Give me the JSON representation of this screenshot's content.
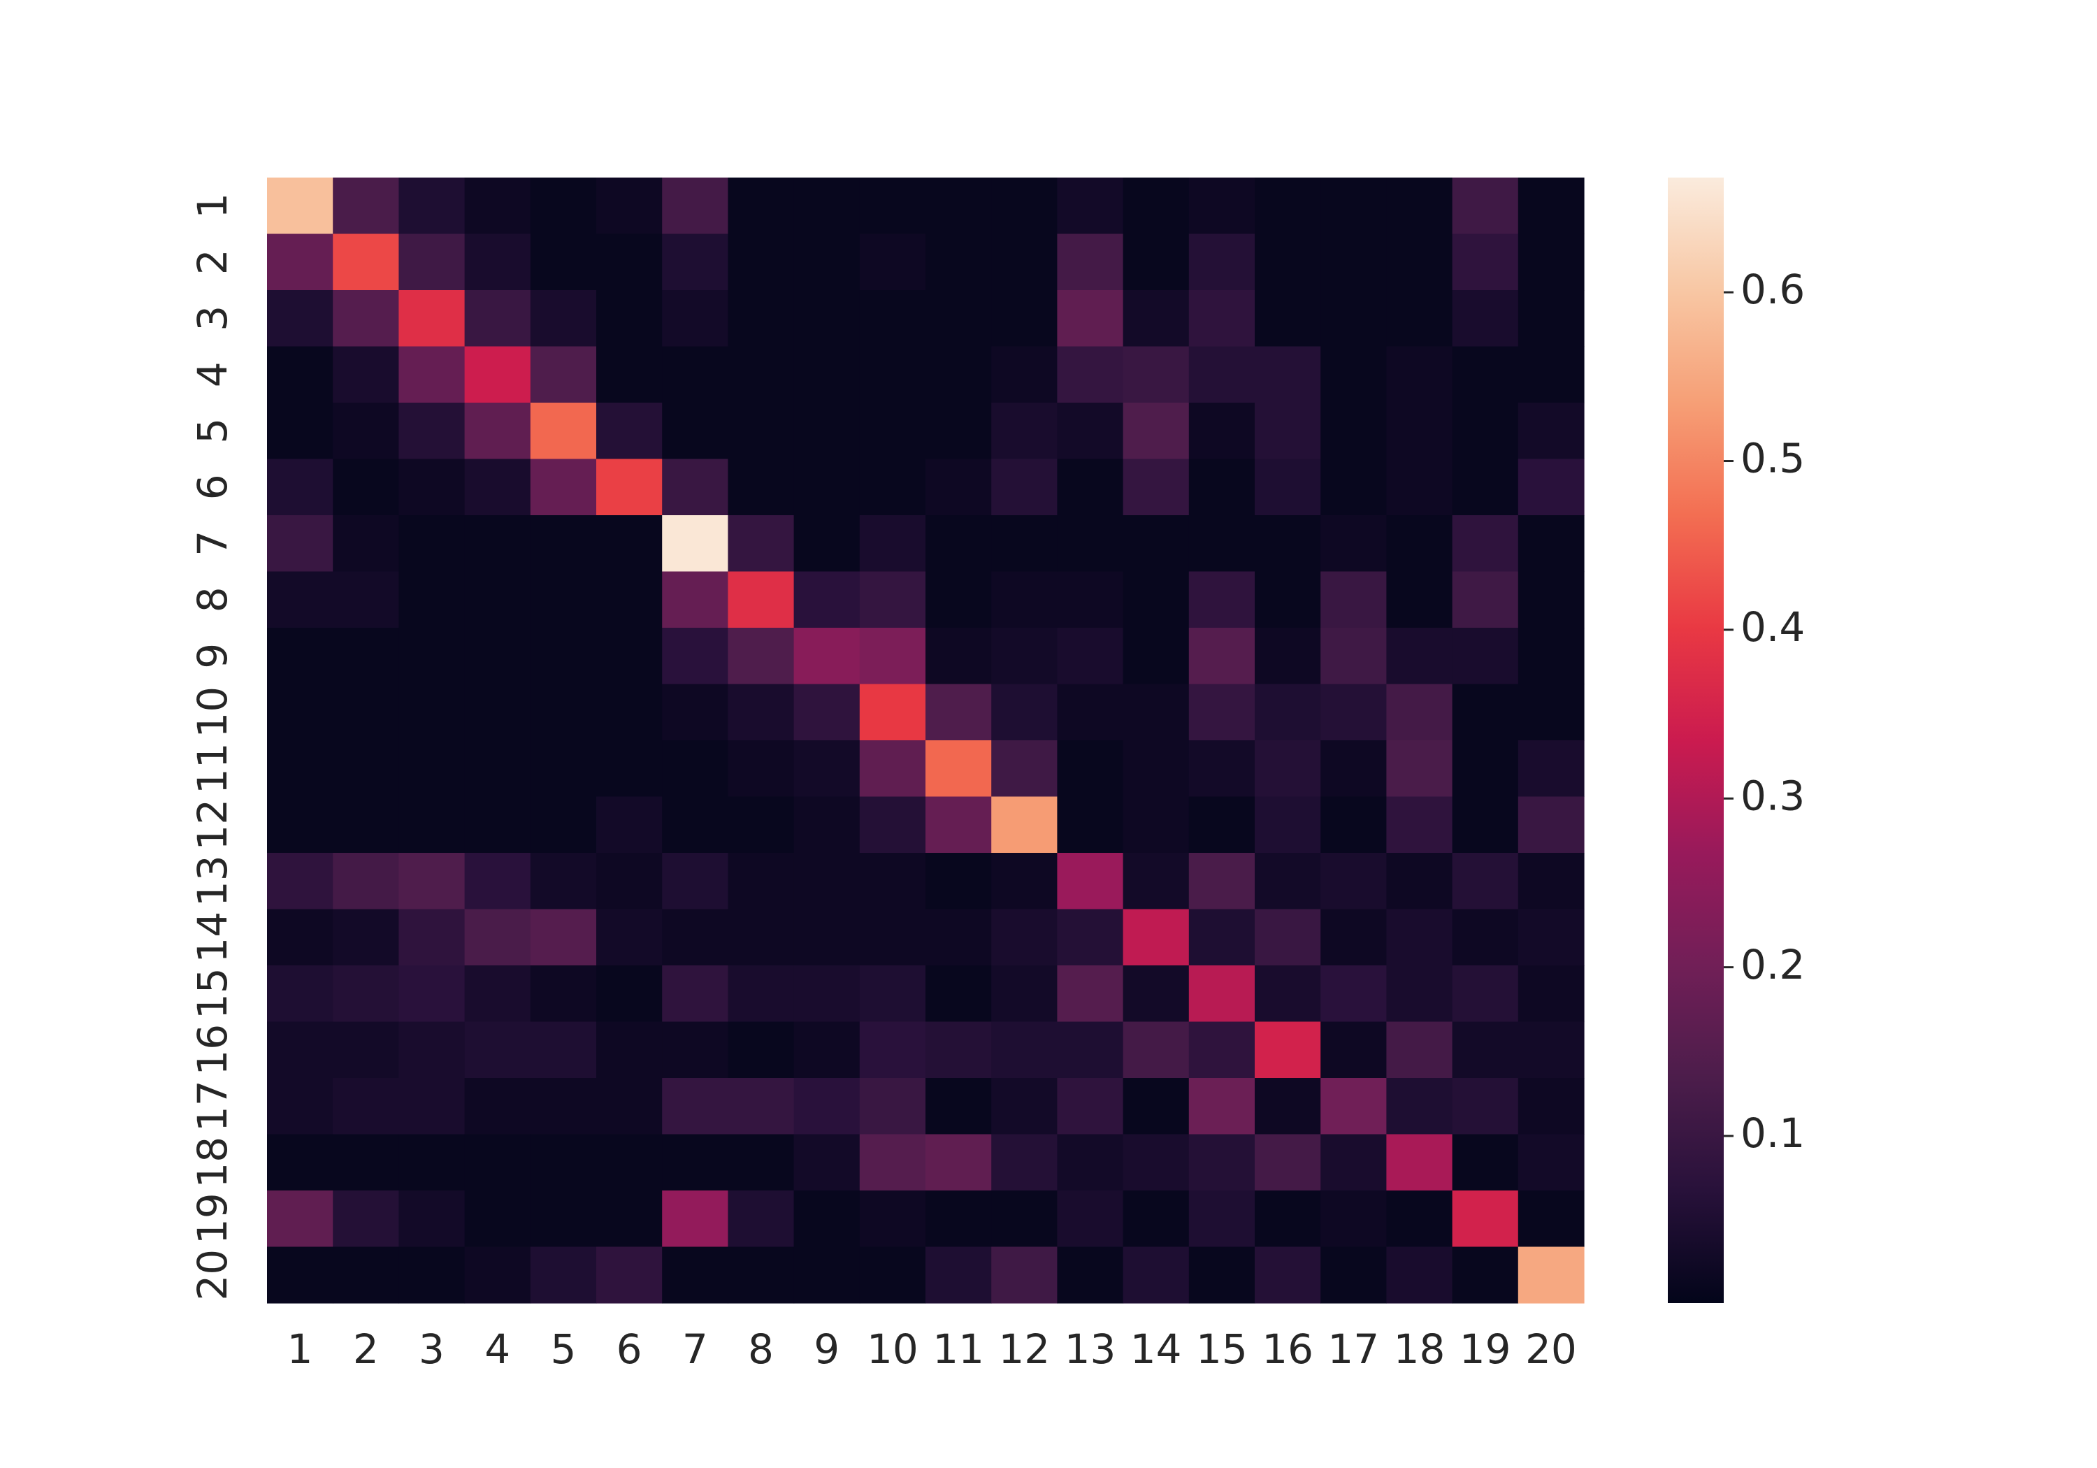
{
  "chart_data": {
    "type": "heatmap",
    "categories": [
      "1",
      "2",
      "3",
      "4",
      "5",
      "6",
      "7",
      "8",
      "9",
      "10",
      "11",
      "12",
      "13",
      "14",
      "15",
      "16",
      "17",
      "18",
      "19",
      "20"
    ],
    "z": [
      [
        0.59,
        0.13,
        0.05,
        0.02,
        0.01,
        0.02,
        0.12,
        0.01,
        0.01,
        0.01,
        0.01,
        0.01,
        0.03,
        0.01,
        0.02,
        0.01,
        0.01,
        0.01,
        0.11,
        0.01
      ],
      [
        0.18,
        0.42,
        0.11,
        0.04,
        0.01,
        0.01,
        0.05,
        0.01,
        0.01,
        0.02,
        0.01,
        0.01,
        0.12,
        0.01,
        0.06,
        0.01,
        0.01,
        0.01,
        0.08,
        0.01
      ],
      [
        0.05,
        0.15,
        0.38,
        0.1,
        0.04,
        0.01,
        0.03,
        0.01,
        0.01,
        0.01,
        0.01,
        0.01,
        0.17,
        0.03,
        0.08,
        0.01,
        0.01,
        0.01,
        0.04,
        0.01
      ],
      [
        0.01,
        0.04,
        0.18,
        0.34,
        0.14,
        0.01,
        0.01,
        0.01,
        0.01,
        0.01,
        0.01,
        0.02,
        0.09,
        0.1,
        0.06,
        0.06,
        0.01,
        0.02,
        0.01,
        0.01
      ],
      [
        0.01,
        0.02,
        0.06,
        0.17,
        0.46,
        0.06,
        0.01,
        0.01,
        0.01,
        0.01,
        0.01,
        0.04,
        0.03,
        0.14,
        0.02,
        0.06,
        0.01,
        0.02,
        0.01,
        0.03
      ],
      [
        0.05,
        0.01,
        0.02,
        0.04,
        0.18,
        0.41,
        0.1,
        0.01,
        0.01,
        0.01,
        0.02,
        0.06,
        0.01,
        0.09,
        0.01,
        0.05,
        0.01,
        0.02,
        0.01,
        0.07
      ],
      [
        0.1,
        0.02,
        0.01,
        0.01,
        0.01,
        0.01,
        0.66,
        0.09,
        0.01,
        0.04,
        0.01,
        0.01,
        0.01,
        0.01,
        0.01,
        0.01,
        0.02,
        0.01,
        0.08,
        0.01
      ],
      [
        0.03,
        0.03,
        0.01,
        0.01,
        0.01,
        0.01,
        0.18,
        0.38,
        0.07,
        0.09,
        0.01,
        0.02,
        0.02,
        0.01,
        0.08,
        0.01,
        0.1,
        0.01,
        0.11,
        0.01
      ],
      [
        0.01,
        0.01,
        0.01,
        0.01,
        0.01,
        0.01,
        0.07,
        0.14,
        0.24,
        0.22,
        0.02,
        0.03,
        0.04,
        0.01,
        0.15,
        0.02,
        0.11,
        0.04,
        0.04,
        0.01
      ],
      [
        0.01,
        0.01,
        0.01,
        0.01,
        0.01,
        0.01,
        0.02,
        0.04,
        0.08,
        0.4,
        0.14,
        0.05,
        0.02,
        0.02,
        0.09,
        0.05,
        0.06,
        0.12,
        0.01,
        0.01
      ],
      [
        0.01,
        0.01,
        0.01,
        0.01,
        0.01,
        0.01,
        0.01,
        0.02,
        0.03,
        0.17,
        0.46,
        0.11,
        0.01,
        0.02,
        0.03,
        0.06,
        0.02,
        0.13,
        0.01,
        0.04
      ],
      [
        0.01,
        0.01,
        0.01,
        0.01,
        0.01,
        0.03,
        0.01,
        0.01,
        0.02,
        0.06,
        0.18,
        0.53,
        0.01,
        0.02,
        0.01,
        0.05,
        0.01,
        0.08,
        0.01,
        0.1
      ],
      [
        0.08,
        0.12,
        0.14,
        0.07,
        0.03,
        0.02,
        0.05,
        0.02,
        0.02,
        0.02,
        0.01,
        0.02,
        0.27,
        0.03,
        0.13,
        0.03,
        0.04,
        0.02,
        0.06,
        0.02
      ],
      [
        0.02,
        0.03,
        0.08,
        0.13,
        0.15,
        0.03,
        0.02,
        0.02,
        0.02,
        0.02,
        0.02,
        0.04,
        0.06,
        0.32,
        0.05,
        0.1,
        0.02,
        0.04,
        0.02,
        0.03
      ],
      [
        0.05,
        0.06,
        0.07,
        0.04,
        0.02,
        0.01,
        0.08,
        0.04,
        0.04,
        0.05,
        0.01,
        0.03,
        0.15,
        0.03,
        0.31,
        0.04,
        0.07,
        0.04,
        0.06,
        0.02
      ],
      [
        0.03,
        0.03,
        0.04,
        0.05,
        0.05,
        0.02,
        0.02,
        0.01,
        0.02,
        0.07,
        0.06,
        0.05,
        0.05,
        0.12,
        0.08,
        0.35,
        0.02,
        0.12,
        0.03,
        0.03
      ],
      [
        0.03,
        0.04,
        0.04,
        0.02,
        0.02,
        0.02,
        0.09,
        0.09,
        0.07,
        0.1,
        0.01,
        0.03,
        0.08,
        0.01,
        0.19,
        0.02,
        0.2,
        0.05,
        0.06,
        0.02
      ],
      [
        0.01,
        0.01,
        0.01,
        0.01,
        0.01,
        0.01,
        0.01,
        0.01,
        0.03,
        0.15,
        0.17,
        0.06,
        0.03,
        0.04,
        0.06,
        0.12,
        0.04,
        0.29,
        0.01,
        0.03
      ],
      [
        0.17,
        0.06,
        0.03,
        0.01,
        0.01,
        0.01,
        0.26,
        0.05,
        0.01,
        0.02,
        0.01,
        0.01,
        0.04,
        0.01,
        0.05,
        0.01,
        0.02,
        0.01,
        0.35,
        0.01
      ],
      [
        0.01,
        0.01,
        0.01,
        0.02,
        0.05,
        0.08,
        0.01,
        0.01,
        0.01,
        0.01,
        0.05,
        0.11,
        0.01,
        0.05,
        0.01,
        0.06,
        0.01,
        0.04,
        0.01,
        0.55
      ]
    ],
    "vlim": [
      0.001,
      0.668
    ],
    "colorbar_ticks": [
      0.1,
      0.2,
      0.3,
      0.4,
      0.5,
      0.6
    ],
    "colormap": [
      "#03051a",
      "#28113a",
      "#4c1d4b",
      "#711f57",
      "#981a5b",
      "#cb1b4f",
      "#e93943",
      "#f36e52",
      "#f69f76",
      "#f8c7a4",
      "#faebdd"
    ]
  }
}
